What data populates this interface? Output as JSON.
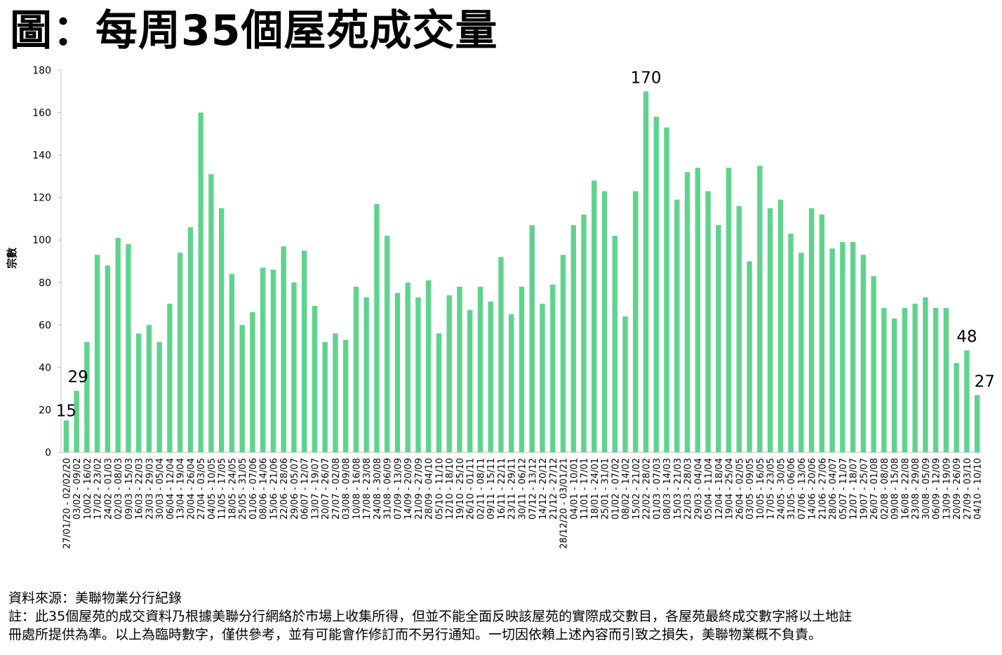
{
  "title": "圖：每周35個屋苑成交量",
  "footer": {
    "source": "資料來源：美聯物業分行紀錄",
    "note_line1": "註：此35個屋苑的成交資料乃根據美聯分行網絡於市場上收集所得，但並不能全面反映該屋苑的實際成交數目，各屋苑最終成交數字將以土地註",
    "note_line2": "冊處所提供為準。以上為臨時數字，僅供參考，並有可能會作修訂而不另行通知。一切因依賴上述內容而引致之損失，美聯物業概不負責。"
  },
  "colors": {
    "bar": "#5fd38d"
  },
  "chart_data": {
    "type": "bar",
    "ylabel": "宗數",
    "xlabel": "",
    "ylim": [
      0,
      180
    ],
    "yticks": [
      0,
      20,
      40,
      60,
      80,
      100,
      120,
      140,
      160,
      180
    ],
    "grid": false,
    "legend": "none",
    "categories": [
      "27/01/20 - 02/02/20",
      "03/02 - 09/02",
      "10/02 - 16/02",
      "17/02 - 23/02",
      "24/02 - 01/03",
      "02/03 - 08/03",
      "09/03 - 15/03",
      "16/03 - 22/03",
      "23/03 - 29/03",
      "30/03 - 05/04",
      "06/04 - 12/04",
      "13/04 - 19/04",
      "20/04 - 26/04",
      "27/04 - 03/05",
      "04/05 - 10/05",
      "11/05 - 17/05",
      "18/05 - 24/05",
      "25/05 - 31/05",
      "01/06 - 07/06",
      "08/06 - 14/06",
      "15/06 - 21/06",
      "22/06 - 28/06",
      "29/06 - 05/07",
      "06/07 - 12/07",
      "13/07 - 19/07",
      "20/07 - 26/07",
      "27/07 - 02/08",
      "03/08 - 09/08",
      "10/08 - 16/08",
      "17/08 - 23/08",
      "24/08 - 30/08",
      "31/08 - 06/09",
      "07/09 - 13/09",
      "14/09 - 20/09",
      "21/09 - 27/09",
      "28/09 - 04/10",
      "05/10 - 11/10",
      "12/10 - 18/10",
      "19/10 - 25/10",
      "26/10 - 01/11",
      "02/11 - 08/11",
      "09/11 - 15/11",
      "16/11 - 22/11",
      "23/11 - 29/11",
      "30/11 - 06/12",
      "07/12 - 13/12",
      "14/12 - 20/12",
      "21/12 - 27/12",
      "28/12/20 - 03/01/21",
      "04/01 - 10/01",
      "11/01 - 17/01",
      "18/01 - 24/01",
      "25/01 - 31/01",
      "01/02 - 07/02",
      "08/02 - 14/02",
      "15/02 - 21/02",
      "22/02 - 28/02",
      "01/03 - 07/03",
      "08/03 - 14/03",
      "15/03 - 21/03",
      "22/03 - 28/03",
      "29/03 - 04/04",
      "05/04 - 11/04",
      "12/04 - 18/04",
      "19/04 - 25/04",
      "26/04 - 02/05",
      "03/05 - 09/05",
      "10/05 - 16/05",
      "17/05 - 23/05",
      "24/05 - 30/05",
      "31/05 - 06/06",
      "07/06 - 13/06",
      "14/06 - 20/06",
      "21/06 - 27/06",
      "28/06 - 04/07",
      "05/07 - 11/07",
      "12/07 - 18/07",
      "19/07 - 25/07",
      "26/07 - 01/08",
      "02/08 - 08/08",
      "09/08 - 15/08",
      "16/08 - 22/08",
      "23/08 - 29/08",
      "30/08 - 05/09",
      "06/09 - 12/09",
      "13/09 - 19/09",
      "20/09 - 26/09",
      "27/09 - 03/10",
      "04/10 - 10/10"
    ],
    "values": [
      15,
      29,
      52,
      93,
      88,
      101,
      98,
      56,
      60,
      52,
      70,
      94,
      106,
      160,
      131,
      115,
      84,
      60,
      66,
      87,
      86,
      97,
      80,
      95,
      69,
      52,
      56,
      53,
      78,
      73,
      117,
      102,
      75,
      80,
      73,
      81,
      56,
      74,
      78,
      67,
      78,
      71,
      92,
      65,
      78,
      107,
      70,
      79,
      93,
      107,
      112,
      128,
      123,
      102,
      64,
      123,
      170,
      158,
      153,
      119,
      132,
      134,
      123,
      107,
      134,
      116,
      90,
      135,
      115,
      119,
      103,
      94,
      115,
      112,
      96,
      99,
      99,
      93,
      83,
      68,
      63,
      68,
      70,
      73,
      68,
      68,
      42,
      48,
      27
    ],
    "annotations": [
      {
        "index": 0,
        "text": "15"
      },
      {
        "index": 1,
        "text": "29"
      },
      {
        "index": 56,
        "text": "170"
      },
      {
        "index": 87,
        "text": "48"
      },
      {
        "index": 88,
        "text": "27"
      }
    ]
  }
}
